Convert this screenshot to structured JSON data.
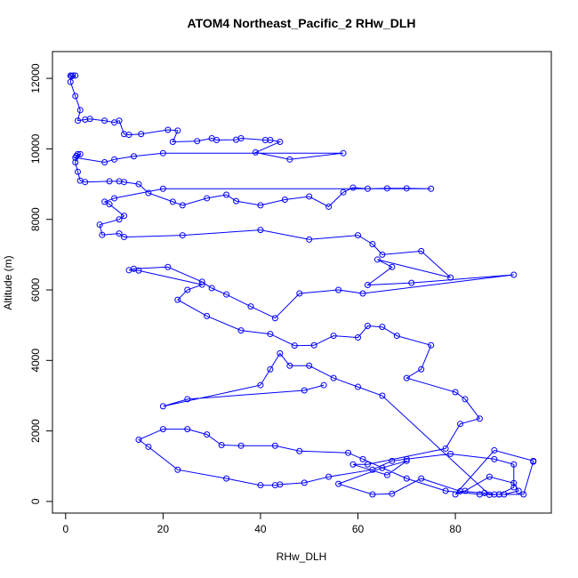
{
  "chart_data": {
    "type": "line",
    "markers": true,
    "color": "#0000ff",
    "title": "ATOM4 Northeast_Pacific_2 RHw_DLH",
    "x_label": "RHw_DLH",
    "y_label": "Altitude (m)",
    "xlim": [
      -2.7,
      99.7
    ],
    "ylim": [
      -330,
      12760
    ],
    "xticks": [
      0,
      20,
      40,
      60,
      80
    ],
    "yticks": [
      0,
      2000,
      4000,
      6000,
      8000,
      10000,
      12000
    ],
    "x": [
      1,
      1.5,
      2,
      1.2,
      1,
      2,
      3,
      2.5,
      4,
      5,
      8,
      10,
      11,
      12,
      13,
      15.5,
      21,
      23,
      22,
      27,
      30,
      31,
      35,
      36,
      41,
      42,
      44,
      39,
      46,
      57,
      20,
      14,
      10,
      8,
      2,
      2.2,
      2.5,
      3,
      2,
      2.5,
      3,
      4,
      9,
      11,
      12,
      15,
      17,
      22,
      24,
      29,
      33,
      35,
      40,
      45,
      50,
      54,
      57,
      59,
      62,
      66,
      70,
      75,
      20,
      10,
      8,
      9,
      12,
      11,
      7,
      7.5,
      11,
      12,
      24,
      40,
      50,
      60,
      63,
      65,
      73,
      79,
      64,
      67,
      62,
      71,
      92,
      61,
      56,
      48,
      43,
      38,
      33,
      30,
      28,
      21,
      14,
      13,
      15,
      28,
      25,
      23,
      29,
      36,
      42,
      47,
      51,
      55,
      60,
      62,
      65,
      68,
      75,
      73,
      70,
      80,
      82,
      85,
      81,
      78,
      62,
      59,
      66,
      70,
      65,
      56,
      63,
      67,
      73,
      81,
      86,
      88,
      94,
      96,
      96,
      88,
      80,
      82,
      87,
      92,
      93,
      90,
      89,
      85,
      78,
      70,
      61,
      58,
      48,
      43,
      36,
      32,
      29,
      25,
      20,
      15,
      17,
      23,
      33,
      40,
      43,
      44,
      49,
      54,
      63,
      67,
      70,
      79,
      88,
      92,
      92,
      89,
      87,
      65,
      60,
      55,
      50,
      46,
      44,
      42,
      40,
      20,
      25,
      49,
      53
    ],
    "values": [
      12080,
      12080,
      12080,
      12060,
      11900,
      11500,
      11100,
      10800,
      10830,
      10850,
      10800,
      10750,
      10800,
      10420,
      10400,
      10420,
      10540,
      10520,
      10200,
      10220,
      10300,
      10250,
      10260,
      10300,
      10250,
      10250,
      10200,
      9900,
      9700,
      9880,
      9880,
      9790,
      9700,
      9620,
      9750,
      9800,
      9850,
      9850,
      9620,
      9350,
      9100,
      9060,
      9080,
      9080,
      9060,
      9000,
      8750,
      8500,
      8400,
      8600,
      8700,
      8520,
      8400,
      8560,
      8650,
      8360,
      8770,
      8900,
      8870,
      8880,
      8880,
      8870,
      8870,
      8600,
      8500,
      8430,
      8100,
      8000,
      7850,
      7560,
      7600,
      7500,
      7550,
      7700,
      7430,
      7550,
      7300,
      7000,
      7100,
      6350,
      6860,
      6650,
      6140,
      6200,
      6430,
      5900,
      6000,
      5900,
      5200,
      5530,
      5870,
      6050,
      6230,
      6650,
      6600,
      6560,
      6550,
      6150,
      6000,
      5720,
      5260,
      4850,
      4750,
      4420,
      4430,
      4700,
      4650,
      4980,
      4950,
      4700,
      4430,
      3750,
      3500,
      3100,
      2900,
      2350,
      2200,
      1500,
      1050,
      1050,
      750,
      1150,
      950,
      500,
      200,
      220,
      650,
      290,
      240,
      200,
      200,
      1130,
      1150,
      1450,
      200,
      300,
      700,
      520,
      300,
      200,
      200,
      200,
      300,
      650,
      1200,
      1380,
      1430,
      1580,
      1580,
      1600,
      1900,
      2050,
      2050,
      1750,
      1550,
      900,
      650,
      460,
      460,
      480,
      530,
      700,
      900,
      1150,
      1200,
      1350,
      1200,
      1050,
      400,
      200,
      190,
      3000,
      3250,
      3500,
      3850,
      3850,
      4200,
      3750,
      3300,
      2700,
      2900,
      3150,
      3300
    ]
  }
}
